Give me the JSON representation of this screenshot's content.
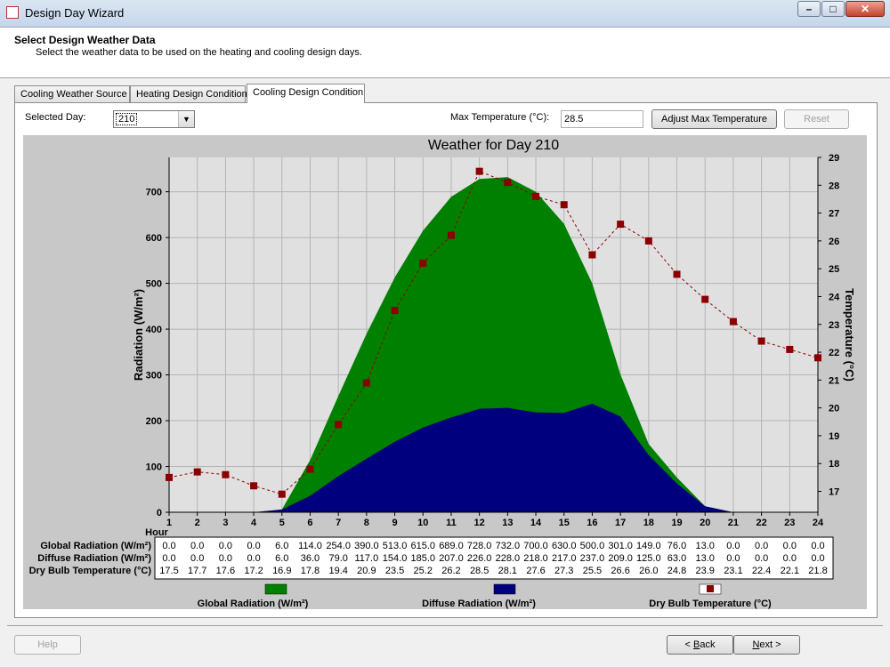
{
  "window": {
    "title": "Design Day Wizard"
  },
  "header": {
    "title": "Select Design Weather Data",
    "subtitle": "Select the weather data to be used on the heating and cooling design days."
  },
  "tabs": [
    {
      "label": "Cooling Weather Source",
      "active": false
    },
    {
      "label": "Heating Design Condition",
      "active": false
    },
    {
      "label": "Cooling Design Condition",
      "active": true
    }
  ],
  "controls": {
    "selected_day_label": "Selected Day:",
    "selected_day_value": "210",
    "max_temp_label": "Max Temperature (°C):",
    "max_temp_value": "28.5",
    "adjust_button": "Adjust Max Temperature",
    "reset_button": "Reset"
  },
  "footer": {
    "help_button": "Help",
    "back_button_pre": "< ",
    "back_button_key": "B",
    "back_button_post": "ack",
    "next_button_pre": "",
    "next_button_key": "N",
    "next_button_post": "ext >"
  },
  "chart_data": {
    "type": "area",
    "title": "Weather for Day 210",
    "xlabel": "Hour",
    "ylabel_left": "Radiation (W/m²)",
    "ylabel_right": "Temperature (°C)",
    "x": [
      1,
      2,
      3,
      4,
      5,
      6,
      7,
      8,
      9,
      10,
      11,
      12,
      13,
      14,
      15,
      16,
      17,
      18,
      19,
      20,
      21,
      22,
      23,
      24
    ],
    "ylim_left": [
      0,
      775
    ],
    "yticks_left": [
      0,
      100,
      200,
      300,
      400,
      500,
      600,
      700
    ],
    "ylim_right": [
      16.25,
      29
    ],
    "yticks_right": [
      17,
      18,
      19,
      20,
      21,
      22,
      23,
      24,
      25,
      26,
      27,
      28,
      29
    ],
    "grid": true,
    "series": [
      {
        "name": "Global Radiation (W/m²)",
        "axis": "left",
        "kind": "area",
        "color": "#008000",
        "values": [
          0.0,
          0.0,
          0.0,
          0.0,
          6.0,
          114.0,
          254.0,
          390.0,
          513.0,
          615.0,
          689.0,
          728.0,
          732.0,
          700.0,
          630.0,
          500.0,
          301.0,
          149.0,
          76.0,
          13.0,
          0.0,
          0.0,
          0.0,
          0.0
        ]
      },
      {
        "name": "Diffuse Radiation (W/m²)",
        "axis": "left",
        "kind": "area",
        "color": "#00007f",
        "values": [
          0.0,
          0.0,
          0.0,
          0.0,
          6.0,
          36.0,
          79.0,
          117.0,
          154.0,
          185.0,
          207.0,
          226.0,
          228.0,
          218.0,
          217.0,
          237.0,
          209.0,
          125.0,
          63.0,
          13.0,
          0.0,
          0.0,
          0.0,
          0.0
        ]
      },
      {
        "name": "Dry Bulb Temperature (°C)",
        "axis": "right",
        "kind": "line",
        "color": "#8b0000",
        "values": [
          17.5,
          17.7,
          17.6,
          17.2,
          16.9,
          17.8,
          19.4,
          20.9,
          23.5,
          25.2,
          26.2,
          28.5,
          28.1,
          27.6,
          27.3,
          25.5,
          26.6,
          26.0,
          24.8,
          23.9,
          23.1,
          22.4,
          22.1,
          21.8
        ]
      }
    ],
    "table_rows": [
      {
        "label": "Global Radiation (W/m²)",
        "values": [
          "0.0",
          "0.0",
          "0.0",
          "0.0",
          "6.0",
          "114.0",
          "254.0",
          "390.0",
          "513.0",
          "615.0",
          "689.0",
          "728.0",
          "732.0",
          "700.0",
          "630.0",
          "500.0",
          "301.0",
          "149.0",
          "76.0",
          "13.0",
          "0.0",
          "0.0",
          "0.0",
          "0.0"
        ]
      },
      {
        "label": "Diffuse Radiation (W/m²)",
        "values": [
          "0.0",
          "0.0",
          "0.0",
          "0.0",
          "6.0",
          "36.0",
          "79.0",
          "117.0",
          "154.0",
          "185.0",
          "207.0",
          "226.0",
          "228.0",
          "218.0",
          "217.0",
          "237.0",
          "209.0",
          "125.0",
          "63.0",
          "13.0",
          "0.0",
          "0.0",
          "0.0",
          "0.0"
        ]
      },
      {
        "label": "Dry Bulb Temperature (°C)",
        "values": [
          "17.5",
          "17.7",
          "17.6",
          "17.2",
          "16.9",
          "17.8",
          "19.4",
          "20.9",
          "23.5",
          "25.2",
          "26.2",
          "28.5",
          "28.1",
          "27.6",
          "27.3",
          "25.5",
          "26.6",
          "26.0",
          "24.8",
          "23.9",
          "23.1",
          "22.4",
          "22.1",
          "21.8"
        ]
      }
    ],
    "legend_position": "bottom",
    "legend": [
      "Global Radiation (W/m²)",
      "Diffuse Radiation (W/m²)",
      "Dry Bulb Temperature (°C)"
    ]
  }
}
